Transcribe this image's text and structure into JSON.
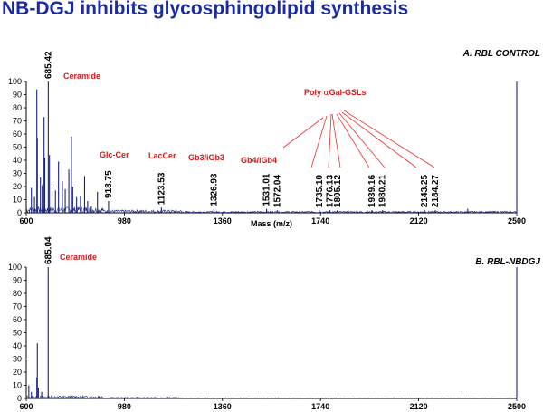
{
  "page_title": "NB-DGJ inhibits glycosphingolipid synthesis",
  "colors": {
    "title": "#1a2aa8",
    "trace": "#1a237e",
    "annotation": "#d21a1a",
    "axis": "#000000"
  },
  "chart_data": [
    {
      "type": "line",
      "title": "A. RBL CONTROL",
      "xlabel": "Mass (m/z)",
      "ylabel": "",
      "xlim": [
        600,
        2500
      ],
      "ylim": [
        0,
        100
      ],
      "x_ticks": [
        600,
        980,
        1360,
        1740,
        2120,
        2500
      ],
      "y_ticks": [
        0,
        10,
        20,
        30,
        40,
        50,
        60,
        70,
        80,
        90,
        100
      ],
      "peaks": [
        {
          "mz": 620,
          "intensity": 19
        },
        {
          "mz": 632,
          "intensity": 12
        },
        {
          "mz": 641,
          "intensity": 94
        },
        {
          "mz": 643,
          "intensity": 57
        },
        {
          "mz": 655,
          "intensity": 27
        },
        {
          "mz": 662,
          "intensity": 21
        },
        {
          "mz": 669,
          "intensity": 73
        },
        {
          "mz": 672,
          "intensity": 42
        },
        {
          "mz": 685.42,
          "intensity": 100
        },
        {
          "mz": 690,
          "intensity": 44
        },
        {
          "mz": 700,
          "intensity": 20
        },
        {
          "mz": 713,
          "intensity": 17
        },
        {
          "mz": 725,
          "intensity": 39
        },
        {
          "mz": 740,
          "intensity": 24
        },
        {
          "mz": 751,
          "intensity": 18
        },
        {
          "mz": 765,
          "intensity": 33
        },
        {
          "mz": 775,
          "intensity": 58
        },
        {
          "mz": 780,
          "intensity": 20
        },
        {
          "mz": 795,
          "intensity": 12
        },
        {
          "mz": 810,
          "intensity": 13
        },
        {
          "mz": 826,
          "intensity": 28
        },
        {
          "mz": 838,
          "intensity": 9
        },
        {
          "mz": 852,
          "intensity": 5
        },
        {
          "mz": 876,
          "intensity": 16
        },
        {
          "mz": 918.75,
          "intensity": 9
        },
        {
          "mz": 1123.53,
          "intensity": 4
        },
        {
          "mz": 1326.93,
          "intensity": 3
        },
        {
          "mz": 1531.01,
          "intensity": 3
        },
        {
          "mz": 1572.04,
          "intensity": 2
        },
        {
          "mz": 1735.1,
          "intensity": 2
        },
        {
          "mz": 1776.13,
          "intensity": 2
        },
        {
          "mz": 1805.12,
          "intensity": 2
        },
        {
          "mz": 1939.16,
          "intensity": 2
        },
        {
          "mz": 1980.21,
          "intensity": 2
        },
        {
          "mz": 2143.25,
          "intensity": 2
        },
        {
          "mz": 2184.27,
          "intensity": 2
        },
        {
          "mz": 2310,
          "intensity": 3
        },
        {
          "mz": 2500,
          "intensity": 100
        }
      ],
      "peak_labels": [
        {
          "mz": 685.42,
          "text": "685.42"
        },
        {
          "mz": 918.75,
          "text": "918.75"
        },
        {
          "mz": 1123.53,
          "text": "1123.53"
        },
        {
          "mz": 1326.93,
          "text": "1326.93"
        },
        {
          "mz": 1531.01,
          "text": "1531.01"
        },
        {
          "mz": 1572.04,
          "text": "1572.04"
        },
        {
          "mz": 1735.1,
          "text": "1735.10"
        },
        {
          "mz": 1776.13,
          "text": "1776.13"
        },
        {
          "mz": 1805.12,
          "text": "1805.12"
        },
        {
          "mz": 1939.16,
          "text": "1939.16"
        },
        {
          "mz": 1980.21,
          "text": "1980.21"
        },
        {
          "mz": 2143.25,
          "text": "2143.25"
        },
        {
          "mz": 2184.27,
          "text": "2184.27"
        }
      ],
      "annotations": {
        "ceramide": "Ceramide",
        "glc_cer": "Glc-Cer",
        "lac_cer": "LacCer",
        "gb3": "Gb3/iGb3",
        "gb4": "Gb4/iGb4",
        "poly_prefix": "Poly ",
        "poly_alpha": "α",
        "poly_suffix": "Gal-GSLs"
      }
    },
    {
      "type": "line",
      "title": "B. RBL-NBDGJ",
      "xlabel": "",
      "ylabel": "",
      "xlim": [
        600,
        2500
      ],
      "ylim": [
        0,
        100
      ],
      "x_ticks": [
        600,
        980,
        1360,
        1740,
        2120,
        2500
      ],
      "y_ticks": [
        0,
        10,
        20,
        30,
        40,
        50,
        60,
        70,
        80,
        90,
        100
      ],
      "peaks": [
        {
          "mz": 610,
          "intensity": 10
        },
        {
          "mz": 620,
          "intensity": 5
        },
        {
          "mz": 641,
          "intensity": 16
        },
        {
          "mz": 643,
          "intensity": 42
        },
        {
          "mz": 647,
          "intensity": 8
        },
        {
          "mz": 660,
          "intensity": 5
        },
        {
          "mz": 685.04,
          "intensity": 100
        },
        {
          "mz": 700,
          "intensity": 3
        },
        {
          "mz": 880,
          "intensity": 2
        },
        {
          "mz": 2500,
          "intensity": 100
        }
      ],
      "peak_labels": [
        {
          "mz": 685.04,
          "text": "685.04"
        }
      ],
      "annotations": {
        "ceramide": "Ceramide"
      }
    }
  ]
}
